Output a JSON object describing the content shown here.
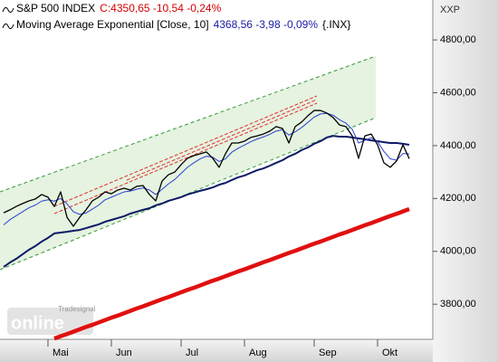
{
  "chart_data": {
    "type": "line",
    "corner_label": "XXP",
    "watermark": [
      "Tradesignal",
      "online"
    ],
    "legend_info": [
      {
        "name_series": 0,
        "text": "C:4350,65 -10,54 -0,24%",
        "color": "#d40000"
      },
      {
        "name_series": 1,
        "text": "4368,56 -3,98 -0,09%",
        "color": "#1a1aaa",
        "suffix": "{.INX}"
      }
    ],
    "categories": [
      null,
      null,
      null,
      null,
      null,
      null,
      null,
      "Mai",
      null,
      null,
      null,
      null,
      null,
      null,
      null,
      null,
      null,
      "Jun",
      null,
      null,
      null,
      null,
      null,
      null,
      null,
      null,
      null,
      null,
      "Jul",
      null,
      null,
      null,
      null,
      null,
      null,
      null,
      null,
      null,
      "Aug",
      null,
      null,
      null,
      null,
      null,
      null,
      null,
      null,
      null,
      null,
      "Sep",
      null,
      null,
      null,
      null,
      null,
      null,
      null,
      null,
      null,
      "Okt",
      null,
      null,
      null,
      null,
      null
    ],
    "series": [
      {
        "name": "S&P 500 INDEX",
        "color": "#000000",
        "width": 1.3,
        "values": [
          4146,
          4157,
          4170,
          4181,
          4191,
          4198,
          4215,
          4205,
          4170,
          4225,
          4129,
          4095,
          4129,
          4157,
          4191,
          4205,
          4225,
          4218,
          4232,
          4239,
          4232,
          4246,
          4249,
          4215,
          4191,
          4266,
          4290,
          4300,
          4328,
          4352,
          4362,
          4369,
          4376,
          4352,
          4318,
          4369,
          4410,
          4410,
          4417,
          4431,
          4437,
          4444,
          4455,
          4472,
          4465,
          4410,
          4472,
          4489,
          4513,
          4533,
          4533,
          4523,
          4506,
          4478,
          4472,
          4437,
          4352,
          4437,
          4444,
          4403,
          4335,
          4318,
          4342,
          4403,
          4350.65
        ]
      },
      {
        "name": "Moving Average Exponential [Close, 10]",
        "color": "#2a3fd0",
        "width": 1,
        "values": [
          4100,
          4120,
          4135,
          4150,
          4165,
          4175,
          4190,
          4195,
          4190,
          4200,
          4180,
          4150,
          4140,
          4145,
          4160,
          4175,
          4195,
          4205,
          4215,
          4225,
          4228,
          4235,
          4240,
          4232,
          4215,
          4235,
          4255,
          4272,
          4295,
          4318,
          4335,
          4350,
          4360,
          4356,
          4340,
          4350,
          4375,
          4390,
          4402,
          4415,
          4425,
          4433,
          4443,
          4455,
          4460,
          4440,
          4452,
          4468,
          4488,
          4508,
          4520,
          4522,
          4515,
          4498,
          4485,
          4462,
          4410,
          4420,
          4430,
          4415,
          4378,
          4350,
          4345,
          4370,
          4368.56
        ]
      },
      {
        "color": "#0d1a66",
        "width": 2,
        "values": [
          3941,
          3958,
          3972,
          3989,
          4006,
          4020,
          4037,
          4051,
          4068,
          4071,
          4074,
          4078,
          4081,
          4088,
          4095,
          4102,
          4112,
          4119,
          4126,
          4133,
          4143,
          4150,
          4157,
          4163,
          4174,
          4181,
          4191,
          4198,
          4205,
          4215,
          4222,
          4229,
          4235,
          4242,
          4252,
          4259,
          4270,
          4280,
          4287,
          4297,
          4307,
          4314,
          4324,
          4335,
          4345,
          4359,
          4369,
          4383,
          4393,
          4407,
          4417,
          4431,
          4437,
          4434,
          4434,
          4431,
          4427,
          4424,
          4420,
          4417,
          4413,
          4410,
          4410,
          4407,
          4403
        ]
      },
      {
        "color": "#e01010",
        "width": 4.5,
        "values": [
          null,
          null,
          null,
          null,
          null,
          null,
          null,
          null,
          3670,
          3679,
          3687,
          3696,
          3705,
          3714,
          3722,
          3731,
          3740,
          3749,
          3757,
          3766,
          3775,
          3784,
          3792,
          3801,
          3810,
          3819,
          3827,
          3836,
          3845,
          3854,
          3862,
          3871,
          3880,
          3889,
          3897,
          3906,
          3915,
          3924,
          3932,
          3941,
          3950,
          3959,
          3967,
          3976,
          3985,
          3994,
          4002,
          4011,
          4020,
          4029,
          4037,
          4046,
          4055,
          4064,
          4072,
          4081,
          4090,
          4099,
          4107,
          4116,
          4125,
          4134,
          4142,
          4151,
          4160
        ]
      }
    ],
    "ylim": [
      3667,
      4951
    ],
    "yticks": [
      {
        "value": 3800,
        "label": "3800,00"
      },
      {
        "value": 4000,
        "label": "4000,00"
      },
      {
        "value": 4200,
        "label": "4200,00"
      },
      {
        "value": 4400,
        "label": "4400,00"
      },
      {
        "value": 4600,
        "label": "4600,00"
      },
      {
        "value": 4800,
        "label": "4800,00"
      }
    ],
    "grid": false
  }
}
